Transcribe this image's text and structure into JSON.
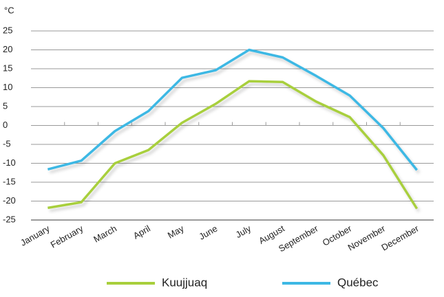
{
  "chart_data": {
    "type": "line",
    "y_unit": "°C",
    "categories": [
      "January",
      "February",
      "March",
      "April",
      "May",
      "June",
      "July",
      "August",
      "September",
      "October",
      "November",
      "December"
    ],
    "series": [
      {
        "name": "Kuujjuaq",
        "color": "#a8cf3c",
        "values": [
          -21.8,
          -20.3,
          -10,
          -6.5,
          0.7,
          5.7,
          11.7,
          11.5,
          6.3,
          2.2,
          -7.9,
          -22
        ]
      },
      {
        "name": "Québec",
        "color": "#3db8e4",
        "values": [
          -11.6,
          -9.3,
          -1.5,
          3.8,
          12.6,
          14.6,
          20,
          18,
          13.1,
          7.9,
          -0.7,
          -11.8
        ]
      }
    ],
    "ylim": [
      -25,
      25
    ],
    "yticks": [
      -25,
      -20,
      -15,
      -10,
      -5,
      0,
      5,
      10,
      15,
      20,
      25
    ],
    "grid": true
  }
}
